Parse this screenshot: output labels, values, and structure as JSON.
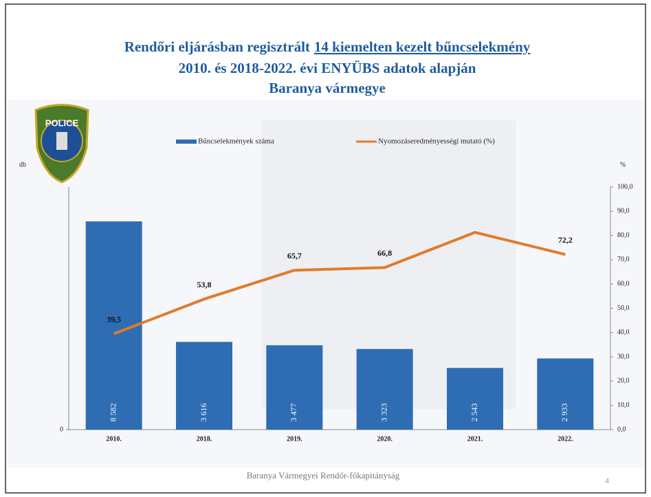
{
  "chart_data": {
    "type": "bar",
    "title": [
      "Rendőri eljárásban regisztrált",
      "14 kiemelten kezelt bűncselekmény",
      "2010. és 2018-2022. évi ENYÜBS adatok alapján",
      "Baranya vármegye"
    ],
    "logo_text": "POLICE",
    "categories": [
      "2010.",
      "2018.",
      "2019.",
      "2020.",
      "2021.",
      "2022."
    ],
    "series": [
      {
        "name": "Bűncselekmények száma",
        "type": "bar",
        "color": "#2e6db4",
        "values": [
          8582,
          3616,
          3477,
          3323,
          2543,
          2933
        ],
        "value_labels": [
          "8 582",
          "3 616",
          "3 477",
          "3 323",
          "2 543",
          "2 933"
        ]
      },
      {
        "name": "Nyomozáseredményességi mutató (%)",
        "type": "line",
        "axis": "y2",
        "color": "#e07b2a",
        "values": [
          39.5,
          53.8,
          65.7,
          66.8,
          81.3,
          72.2
        ],
        "value_labels": [
          "39,5",
          "53,8",
          "65,7",
          "66,8",
          null,
          "72,2"
        ]
      }
    ],
    "y_label": "db",
    "y2_label": "%",
    "ylim": [
      0,
      10000
    ],
    "yticks": [
      0
    ],
    "y2lim": [
      0,
      100
    ],
    "y2ticks": [
      {
        "value": 0,
        "label": "0,0"
      },
      {
        "value": 10,
        "label": "10,0"
      },
      {
        "value": 20,
        "label": "20,0"
      },
      {
        "value": 30,
        "label": "30,0"
      },
      {
        "value": 40,
        "label": "40,0"
      },
      {
        "value": 50,
        "label": "50,0"
      },
      {
        "value": 60,
        "label": "60,0"
      },
      {
        "value": 70,
        "label": "70,0"
      },
      {
        "value": 80,
        "label": "80,0"
      },
      {
        "value": 90,
        "label": "90,0"
      },
      {
        "value": 100,
        "label": "100,0"
      }
    ],
    "footer": "Baranya Vármegyei Rendőr-főkapitányság",
    "page_number": "4"
  }
}
